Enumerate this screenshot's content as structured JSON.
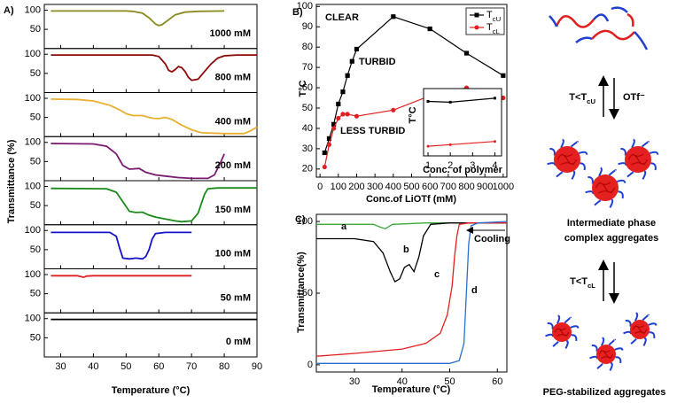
{
  "chart_data": [
    {
      "type": "line",
      "label": "A)",
      "xlabel": "Temperature (°C)",
      "ylabel": "Transmittance (%)",
      "xlim": [
        25,
        90
      ],
      "xticks": [
        30,
        40,
        50,
        60,
        70,
        80,
        90
      ],
      "ylim": [
        0,
        115
      ],
      "yticks": [
        50,
        100
      ],
      "series": [
        {
          "name": "1000 mM",
          "color": "#8a8a20",
          "x": [
            27,
            50,
            52,
            55,
            57,
            59,
            60,
            61,
            63,
            65,
            68,
            72,
            80
          ],
          "values": [
            98,
            98,
            97,
            92,
            80,
            64,
            60,
            62,
            75,
            88,
            95,
            97,
            98
          ]
        },
        {
          "name": "800 mM",
          "color": "#8b0a0a",
          "x": [
            27,
            58,
            60,
            62,
            63,
            64,
            65,
            66,
            67,
            68,
            69,
            70,
            72,
            74,
            76,
            78,
            80,
            84,
            90
          ],
          "values": [
            98,
            98,
            94,
            75,
            58,
            54,
            60,
            68,
            65,
            55,
            40,
            32,
            35,
            55,
            75,
            90,
            96,
            98,
            98
          ]
        },
        {
          "name": "400 mM",
          "color": "#e8b030",
          "x": [
            27,
            35,
            40,
            45,
            48,
            50,
            52,
            55,
            58,
            60,
            62,
            64,
            67,
            70,
            73,
            80,
            86,
            88,
            90
          ],
          "values": [
            98,
            97,
            93,
            82,
            70,
            60,
            55,
            55,
            48,
            47,
            50,
            45,
            30,
            18,
            10,
            8,
            8,
            15,
            25
          ]
        },
        {
          "name": "200 mM",
          "color": "#7a1a70",
          "x": [
            27,
            40,
            44,
            47,
            49,
            51,
            54,
            56,
            59,
            62,
            66,
            70,
            75,
            77,
            79,
            80
          ],
          "values": [
            97,
            96,
            90,
            70,
            40,
            30,
            32,
            22,
            15,
            12,
            8,
            6,
            6,
            15,
            50,
            70
          ]
        },
        {
          "name": "150 mM",
          "color": "#1a8a1a",
          "x": [
            27,
            44,
            47,
            49,
            51,
            53,
            55,
            57,
            59,
            62,
            65,
            67,
            70,
            72,
            74,
            75,
            78,
            90
          ],
          "values": [
            95,
            94,
            85,
            60,
            35,
            32,
            33,
            25,
            20,
            15,
            10,
            8,
            10,
            30,
            80,
            94,
            96,
            96
          ]
        },
        {
          "name": "100 mM",
          "color": "#1515c8",
          "x": [
            27,
            45,
            47,
            48,
            49,
            51,
            53,
            55,
            56,
            57,
            58,
            59,
            62,
            70
          ],
          "values": [
            95,
            95,
            85,
            55,
            28,
            26,
            28,
            26,
            32,
            50,
            78,
            92,
            95,
            95
          ]
        },
        {
          "name": "50 mM",
          "color": "#e02020",
          "x": [
            27,
            35,
            37,
            38,
            40,
            70
          ],
          "values": [
            97,
            97,
            93,
            96,
            97,
            97
          ]
        },
        {
          "name": "0 mM",
          "color": "#000000",
          "x": [
            27,
            90
          ],
          "values": [
            98,
            98
          ]
        }
      ]
    },
    {
      "type": "line",
      "label": "B)",
      "xlabel": "Conc.of LiOTf (mM)",
      "ylabel": "T°C",
      "xlim": [
        -20,
        1020
      ],
      "xticks": [
        0,
        100,
        200,
        300,
        400,
        500,
        600,
        700,
        800,
        900,
        1000
      ],
      "ylim": [
        16,
        101
      ],
      "yticks": [
        20,
        30,
        40,
        50,
        60,
        70,
        80,
        90,
        100
      ],
      "legend": "upper right",
      "annotations": [
        "CLEAR",
        "TURBID",
        "LESS TURBID"
      ],
      "series": [
        {
          "name": "TcU",
          "color": "#000000",
          "marker": "square",
          "x": [
            25,
            50,
            75,
            100,
            125,
            150,
            175,
            200,
            400,
            600,
            800,
            1000
          ],
          "values": [
            28,
            35,
            42,
            52,
            58,
            66,
            73,
            79,
            95,
            89,
            77,
            66
          ]
        },
        {
          "name": "TcL",
          "color": "#e02020",
          "marker": "circle",
          "x": [
            25,
            50,
            75,
            100,
            125,
            150,
            200,
            400,
            600,
            800,
            1000
          ],
          "values": [
            21,
            32,
            40,
            45,
            47,
            47,
            46,
            49,
            56,
            60,
            55
          ]
        }
      ]
    },
    {
      "type": "line",
      "xlabel": "Conc. of polymer",
      "ylabel": "T°C",
      "xlim": [
        0.8,
        4.3
      ],
      "xticks": [
        1,
        2,
        3,
        4
      ],
      "ylim": [
        40,
        82
      ],
      "series": [
        {
          "color": "#000000",
          "marker": "square",
          "x": [
            1,
            2,
            4
          ],
          "values": [
            74,
            73.5,
            76
          ]
        },
        {
          "color": "#e02020",
          "marker": "circle",
          "x": [
            1,
            2,
            4
          ],
          "values": [
            46,
            47,
            49
          ]
        }
      ]
    },
    {
      "type": "line",
      "label": "C)",
      "xlabel": "Temperature (°C)",
      "ylabel": "Transmittance(%)",
      "xlim": [
        22,
        62
      ],
      "xticks": [
        30,
        40,
        50,
        60
      ],
      "ylim": [
        -5,
        105
      ],
      "yticks": [
        0,
        50,
        100
      ],
      "annotations": [
        "Cooling"
      ],
      "series": [
        {
          "name": "a",
          "color": "#3aa83a",
          "x": [
            22,
            34,
            35.5,
            36.5,
            38,
            45,
            62
          ],
          "values": [
            98,
            98,
            96,
            95,
            98,
            99,
            99
          ]
        },
        {
          "name": "b",
          "color": "#000000",
          "x": [
            22,
            30,
            34,
            36,
            37.5,
            38.5,
            39.5,
            40.5,
            41.5,
            42.5,
            43.5,
            44.5,
            46,
            50,
            62
          ],
          "values": [
            88,
            88,
            86,
            78,
            65,
            58,
            60,
            68,
            70,
            65,
            75,
            90,
            98,
            99,
            99
          ]
        },
        {
          "name": "c",
          "color": "#e02020",
          "x": [
            22,
            30,
            40,
            45,
            48,
            49.5,
            50.5,
            51,
            51.5,
            52,
            54,
            62
          ],
          "values": [
            6,
            8,
            11,
            15,
            22,
            35,
            55,
            75,
            90,
            98,
            99,
            99
          ]
        },
        {
          "name": "d",
          "color": "#2a6fd0",
          "x": [
            22,
            40,
            50,
            52,
            53,
            53.5,
            54,
            54.5,
            56,
            62
          ],
          "values": [
            1,
            1,
            1,
            3,
            15,
            50,
            85,
            97,
            99,
            100
          ]
        }
      ]
    }
  ],
  "diagram": {
    "arrow1_labels": [
      "T<TcU",
      "OTf⁻"
    ],
    "stage2": [
      "Intermediate phase",
      "complex aggregates"
    ],
    "arrow2_label": "T<TcL",
    "stage3": "PEG-stabilized aggregates"
  }
}
